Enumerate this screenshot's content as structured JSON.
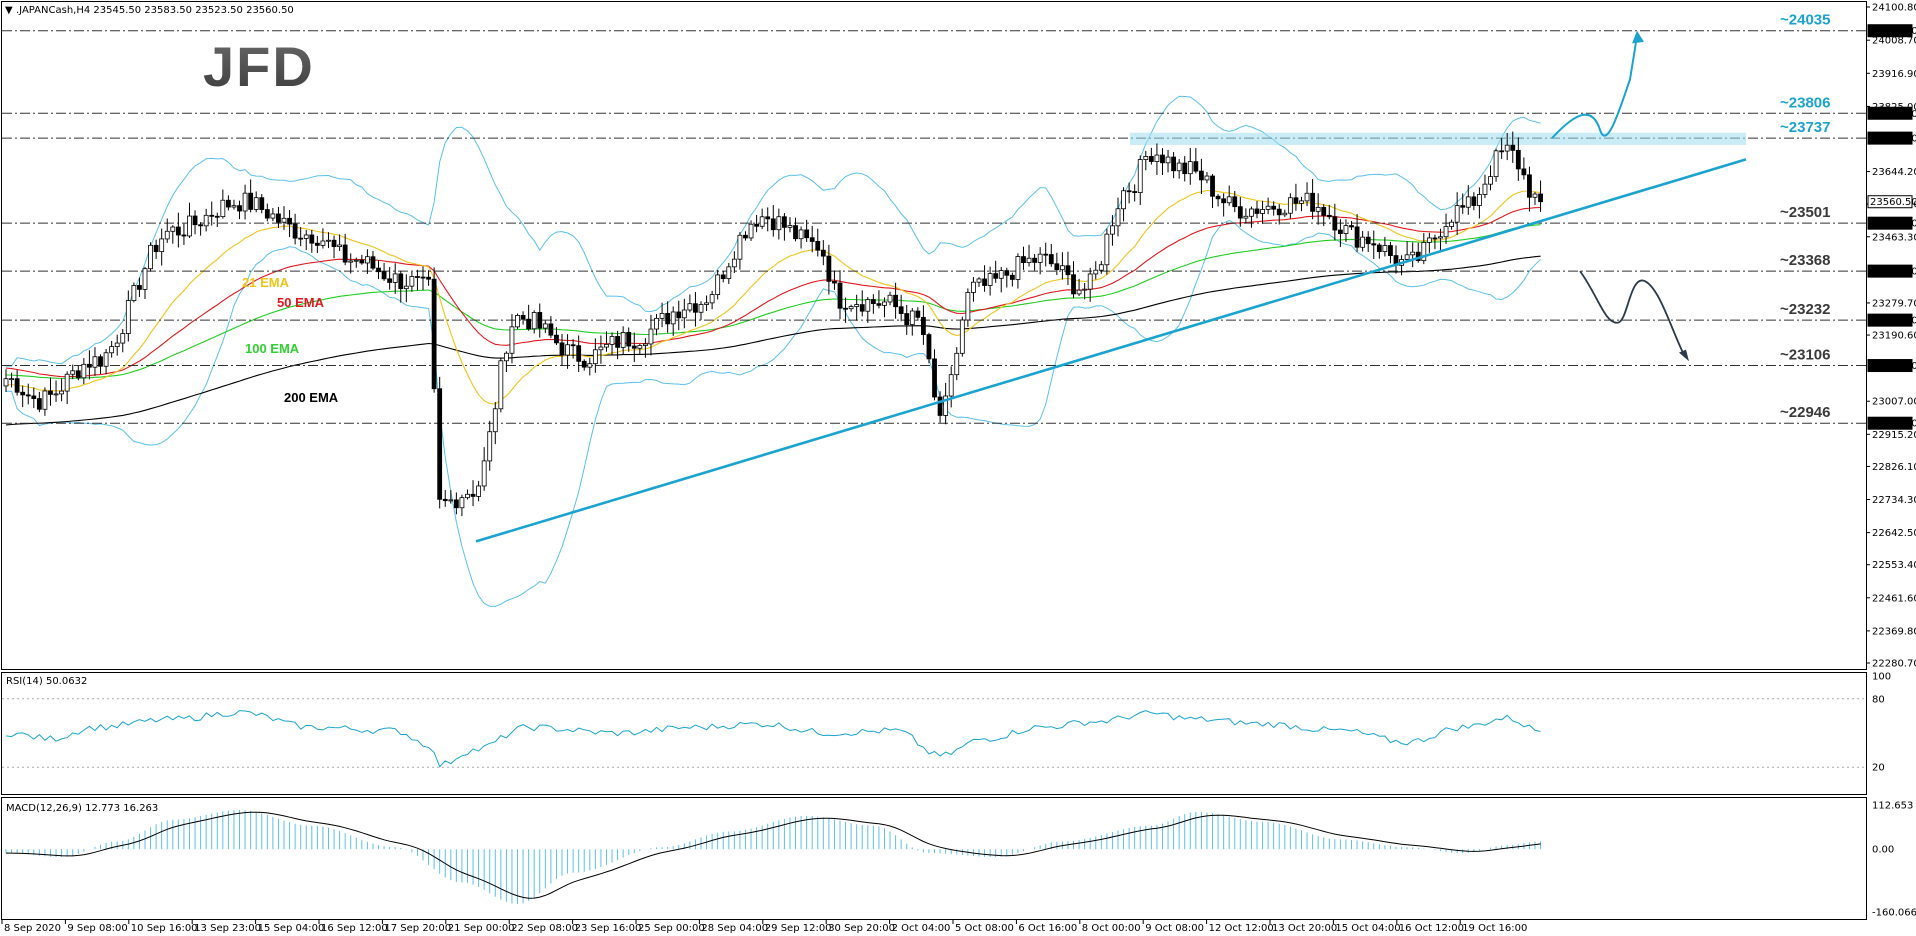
{
  "chart_data": {
    "type": "candlestick",
    "symbol_info": ".JAPANCash,H4  23545.50 23583.50 23523.50 23560.50",
    "logo": "JFD",
    "price_axis": {
      "ylim": [
        22280.7,
        24100.8
      ],
      "tick_labels": [
        "24100.80",
        "24008.70",
        "23916.90",
        "23825.00",
        "23644.20",
        "23553.90",
        "23463.30",
        "23279.70",
        "23190.60",
        "23007.00",
        "22915.20",
        "22826.10",
        "22734.30",
        "22642.50",
        "22553.40",
        "22461.60",
        "22369.80",
        "22280.70"
      ],
      "level_boxes": [
        "24035.00",
        "23806.00",
        "23737.00",
        "23560.50",
        "23501.00",
        "23368.00",
        "23232.00",
        "23106.00",
        "22946.00"
      ],
      "current_price": 23560.5
    },
    "levels": [
      {
        "label": "~24035",
        "value": 24035,
        "color": "#1aa3cf"
      },
      {
        "label": "~23806",
        "value": 23806,
        "color": "#1aa3cf"
      },
      {
        "label": "~23737",
        "value": 23737,
        "color": "#1aa3cf"
      },
      {
        "label": "~23501",
        "value": 23501,
        "color": "#3a3a3a"
      },
      {
        "label": "~23368",
        "value": 23368,
        "color": "#3a3a3a"
      },
      {
        "label": "~23232",
        "value": 23232,
        "color": "#3a3a3a"
      },
      {
        "label": "~23106",
        "value": 23106,
        "color": "#3a3a3a"
      },
      {
        "label": "~22946",
        "value": 22946,
        "color": "#3a3a3a"
      }
    ],
    "ema_labels": [
      {
        "text": "21 EMA",
        "color": "#f0c419"
      },
      {
        "text": "50 EMA",
        "color": "#e0191f"
      },
      {
        "text": "100 EMA",
        "color": "#2fd02f"
      },
      {
        "text": "200 EMA",
        "color": "#000000"
      }
    ],
    "x_labels": [
      "8 Sep 2020",
      "9 Sep 08:00",
      "10 Sep 16:00",
      "13 Sep 23:00",
      "15 Sep 04:00",
      "16 Sep 12:00",
      "17 Sep 20:00",
      "21 Sep 00:00",
      "22 Sep 08:00",
      "23 Sep 16:00",
      "25 Sep 00:00",
      "28 Sep 04:00",
      "29 Sep 12:00",
      "30 Sep 20:00",
      "2 Oct 04:00",
      "5 Oct 08:00",
      "6 Oct 16:00",
      "8 Oct 00:00",
      "9 Oct 08:00",
      "12 Oct 12:00",
      "13 Oct 20:00",
      "15 Oct 04:00",
      "16 Oct 12:00",
      "19 Oct 16:00"
    ],
    "anchors": [
      [
        0,
        23070
      ],
      [
        6,
        23010
      ],
      [
        16,
        23120
      ],
      [
        30,
        23480
      ],
      [
        42,
        23560
      ],
      [
        55,
        23470
      ],
      [
        62,
        23400
      ],
      [
        72,
        23340
      ],
      [
        76,
        23320
      ],
      [
        78,
        22720
      ],
      [
        84,
        22760
      ],
      [
        92,
        23240
      ],
      [
        104,
        23130
      ],
      [
        112,
        23180
      ],
      [
        124,
        23280
      ],
      [
        136,
        23520
      ],
      [
        146,
        23440
      ],
      [
        150,
        23290
      ],
      [
        158,
        23280
      ],
      [
        164,
        23230
      ],
      [
        168,
        22970
      ],
      [
        174,
        23320
      ],
      [
        186,
        23400
      ],
      [
        194,
        23320
      ],
      [
        202,
        23600
      ],
      [
        206,
        23700
      ],
      [
        212,
        23650
      ],
      [
        222,
        23540
      ],
      [
        234,
        23560
      ],
      [
        244,
        23460
      ],
      [
        252,
        23390
      ],
      [
        262,
        23540
      ],
      [
        270,
        23700
      ],
      [
        276,
        23560
      ]
    ],
    "rsi": {
      "label": "RSI(14) 50.0632",
      "ylim": [
        0,
        100
      ],
      "ticks": [
        100,
        80,
        20
      ],
      "anchors": [
        [
          0,
          50
        ],
        [
          8,
          45
        ],
        [
          16,
          55
        ],
        [
          30,
          62
        ],
        [
          42,
          68
        ],
        [
          55,
          55
        ],
        [
          70,
          52
        ],
        [
          76,
          40
        ],
        [
          78,
          22
        ],
        [
          84,
          35
        ],
        [
          94,
          55
        ],
        [
          110,
          50
        ],
        [
          124,
          55
        ],
        [
          136,
          58
        ],
        [
          148,
          50
        ],
        [
          160,
          52
        ],
        [
          168,
          30
        ],
        [
          176,
          45
        ],
        [
          186,
          55
        ],
        [
          196,
          60
        ],
        [
          206,
          67
        ],
        [
          214,
          62
        ],
        [
          226,
          58
        ],
        [
          240,
          52
        ],
        [
          252,
          42
        ],
        [
          262,
          55
        ],
        [
          270,
          63
        ],
        [
          276,
          52
        ]
      ]
    },
    "macd": {
      "label": "MACD(12,26,9) 12.773 16.263",
      "ylim": [
        -160.066,
        112.653
      ],
      "ticks": [
        112.653,
        0.0,
        -160.066
      ],
      "anchors": [
        [
          0,
          -10
        ],
        [
          10,
          -20
        ],
        [
          20,
          20
        ],
        [
          30,
          75
        ],
        [
          42,
          100
        ],
        [
          55,
          60
        ],
        [
          70,
          5
        ],
        [
          82,
          -85
        ],
        [
          92,
          -140
        ],
        [
          102,
          -60
        ],
        [
          118,
          5
        ],
        [
          130,
          45
        ],
        [
          144,
          85
        ],
        [
          156,
          60
        ],
        [
          166,
          -10
        ],
        [
          178,
          -20
        ],
        [
          190,
          20
        ],
        [
          206,
          60
        ],
        [
          214,
          95
        ],
        [
          226,
          70
        ],
        [
          240,
          25
        ],
        [
          252,
          5
        ],
        [
          262,
          -10
        ],
        [
          270,
          10
        ],
        [
          276,
          20
        ]
      ]
    }
  }
}
